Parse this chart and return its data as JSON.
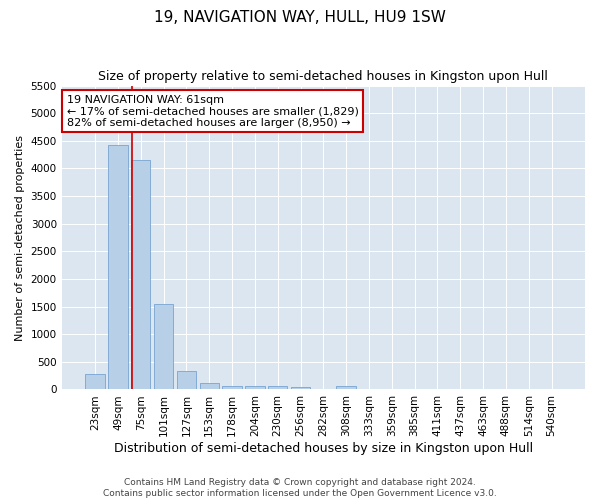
{
  "title": "19, NAVIGATION WAY, HULL, HU9 1SW",
  "subtitle": "Size of property relative to semi-detached houses in Kingston upon Hull",
  "xlabel": "Distribution of semi-detached houses by size in Kingston upon Hull",
  "ylabel": "Number of semi-detached properties",
  "footer1": "Contains HM Land Registry data © Crown copyright and database right 2024.",
  "footer2": "Contains public sector information licensed under the Open Government Licence v3.0.",
  "categories": [
    "23sqm",
    "49sqm",
    "75sqm",
    "101sqm",
    "127sqm",
    "153sqm",
    "178sqm",
    "204sqm",
    "230sqm",
    "256sqm",
    "282sqm",
    "308sqm",
    "333sqm",
    "359sqm",
    "385sqm",
    "411sqm",
    "437sqm",
    "463sqm",
    "488sqm",
    "514sqm",
    "540sqm"
  ],
  "values": [
    280,
    4430,
    4160,
    1550,
    330,
    120,
    70,
    60,
    55,
    50,
    0,
    55,
    0,
    0,
    0,
    0,
    0,
    0,
    0,
    0,
    0
  ],
  "bar_color": "#b8cfe8",
  "bar_edge_color": "#6699cc",
  "redline_x": 1.62,
  "annotation_text1": "19 NAVIGATION WAY: 61sqm",
  "annotation_text2": "← 17% of semi-detached houses are smaller (1,829)",
  "annotation_text3": "82% of semi-detached houses are larger (8,950) →",
  "annotation_box_color": "#ffffff",
  "annotation_box_edge": "#cc0000",
  "redline_color": "#cc0000",
  "ylim": [
    0,
    5500
  ],
  "yticks": [
    0,
    500,
    1000,
    1500,
    2000,
    2500,
    3000,
    3500,
    4000,
    4500,
    5000,
    5500
  ],
  "title_fontsize": 11,
  "subtitle_fontsize": 9,
  "xlabel_fontsize": 9,
  "ylabel_fontsize": 8,
  "tick_fontsize": 7.5,
  "footer_fontsize": 6.5,
  "annotation_fontsize": 8
}
